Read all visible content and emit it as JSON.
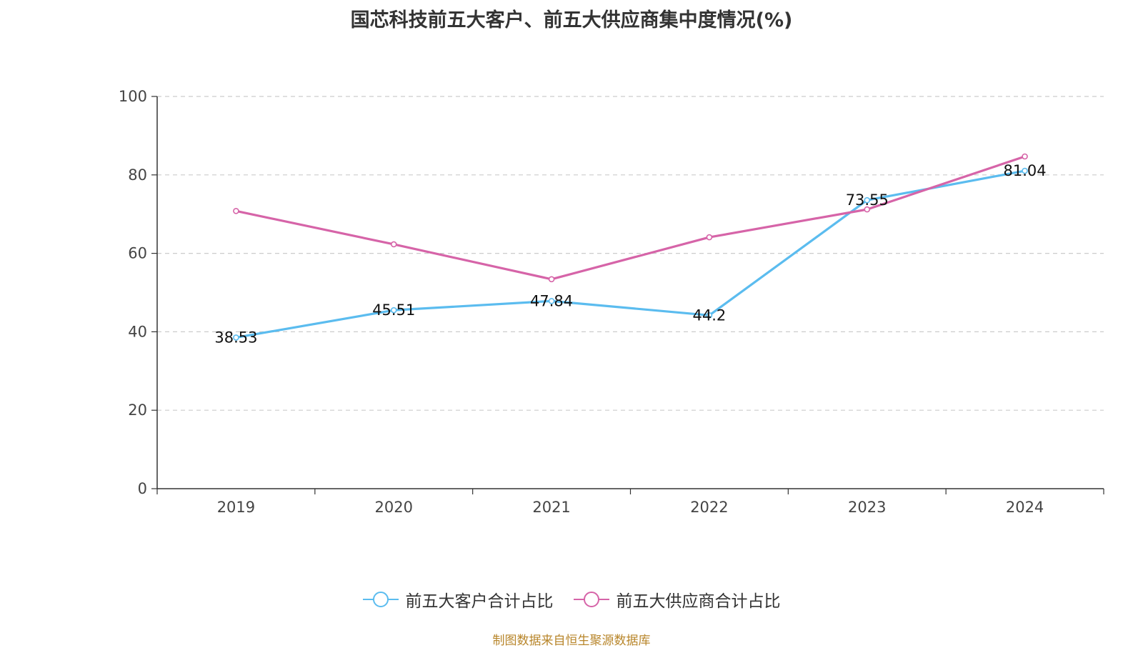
{
  "chart_data": {
    "type": "line",
    "title": "国芯科技前五大客户、前五大供应商集中度情况(%)",
    "categories": [
      "2019",
      "2020",
      "2021",
      "2022",
      "2023",
      "2024"
    ],
    "y_ticks": [
      "0",
      "20",
      "40",
      "60",
      "80",
      "100"
    ],
    "ylim": [
      0,
      100
    ],
    "grid": true,
    "legend_position": "bottom",
    "series": [
      {
        "name": "前五大客户合计占比",
        "color": "#5bbcef",
        "values": [
          38.53,
          45.51,
          47.84,
          44.2,
          73.55,
          81.04
        ],
        "labels": [
          "38.53",
          "45.51",
          "47.84",
          "44.2",
          "73.55",
          "81.04"
        ]
      },
      {
        "name": "前五大供应商合计占比",
        "color": "#d664a8",
        "values": [
          70.8,
          62.3,
          53.4,
          64.1,
          71.2,
          84.7
        ]
      }
    ]
  },
  "source_note": "制图数据来自恒生聚源数据库"
}
